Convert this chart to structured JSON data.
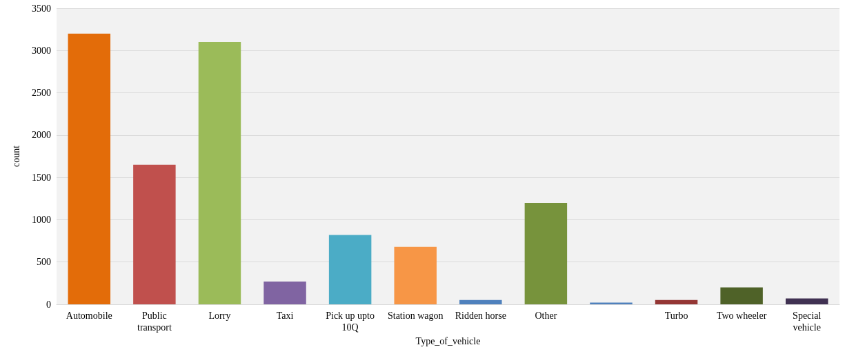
{
  "chart_data": {
    "type": "bar",
    "xlabel": "Type_of_vehicle",
    "ylabel": "count",
    "categories": [
      "Automobile",
      "Public transport",
      "Lorry",
      "Taxi",
      "Pick up upto 10Q",
      "Station wagon",
      "Ridden horse",
      "Other",
      null,
      "Turbo",
      "Two wheeler",
      "Special vehicle"
    ],
    "values": [
      3200,
      1650,
      3100,
      270,
      820,
      680,
      50,
      1200,
      20,
      50,
      200,
      70
    ],
    "colors": [
      "#e36c09",
      "#c0504d",
      "#9bbb59",
      "#8064a2",
      "#4bacc6",
      "#f79646",
      "#4f81bd",
      "#77933c",
      "#4f81bd",
      "#943634",
      "#4f6228",
      "#403152"
    ],
    "ylim": [
      0,
      3500
    ],
    "yticks": [
      0,
      500,
      1000,
      1500,
      2000,
      2500,
      3000,
      3500
    ],
    "grid": "y"
  }
}
